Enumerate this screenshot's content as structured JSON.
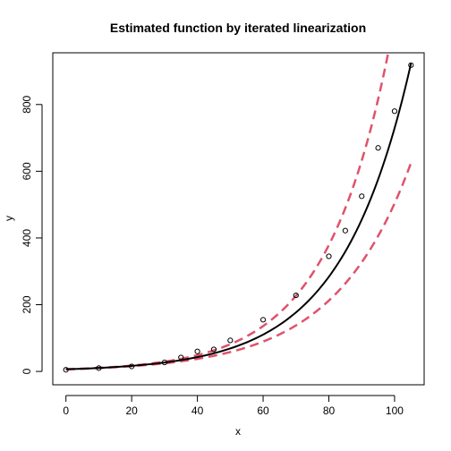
{
  "chart_data": {
    "type": "scatter",
    "title": "Estimated function by iterated linearization",
    "xlabel": "x",
    "ylabel": "y",
    "xlim": [
      -4,
      109
    ],
    "ylim": [
      -40,
      955
    ],
    "xticks": [
      0,
      20,
      40,
      60,
      80,
      100
    ],
    "yticks": [
      0,
      200,
      400,
      600,
      800
    ],
    "grid": false,
    "legend": "none",
    "points": {
      "x": [
        0,
        10,
        20,
        30,
        35,
        40,
        45,
        50,
        60,
        70,
        80,
        85,
        90,
        95,
        100,
        105
      ],
      "y": [
        5,
        10,
        15,
        27,
        42,
        60,
        66,
        93,
        155,
        228,
        345,
        422,
        525,
        670,
        780,
        918
      ]
    },
    "fit": {
      "a": 6.5,
      "b": 0.0472,
      "x_range": [
        0,
        105
      ],
      "color": "#000000"
    },
    "band_upper": {
      "a": 6.3,
      "b": 0.0512,
      "x_range": [
        0,
        105
      ],
      "color": "#DF536B"
    },
    "band_lower": {
      "a": 6.7,
      "b": 0.0432,
      "x_range": [
        0,
        105
      ],
      "color": "#DF536B"
    }
  }
}
